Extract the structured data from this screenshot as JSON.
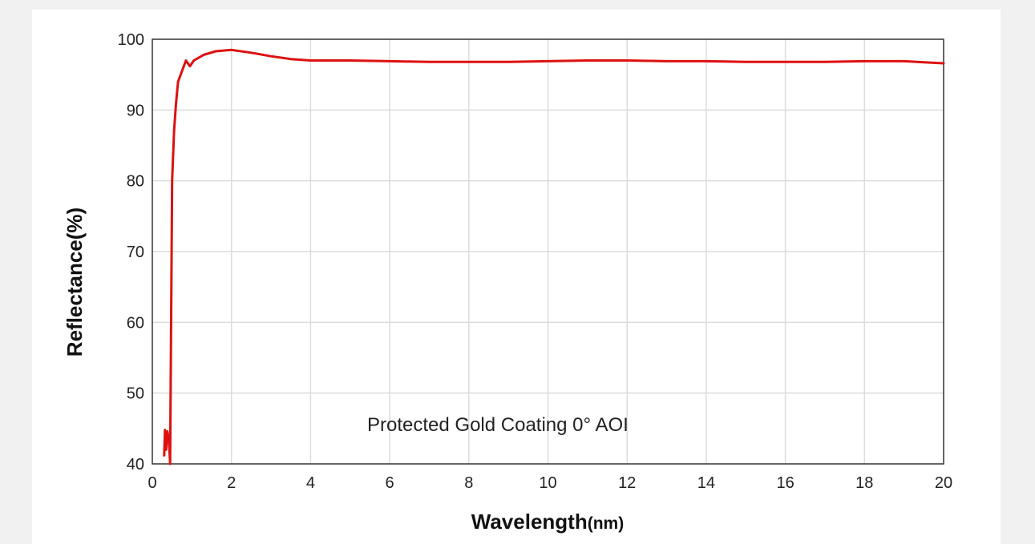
{
  "chart_data": {
    "type": "line",
    "xlabel": "Wavelength",
    "xlabel_unit": "(nm)",
    "ylabel": "Reflectance(%)",
    "annotation": "Protected Gold Coating  0°  AOI",
    "xlim": [
      0,
      20
    ],
    "ylim": [
      40,
      100
    ],
    "x_ticks": [
      0,
      2,
      4,
      6,
      8,
      10,
      12,
      14,
      16,
      18,
      20
    ],
    "y_ticks": [
      40,
      50,
      60,
      70,
      80,
      90,
      100
    ],
    "grid": true,
    "series": [
      {
        "color": "#dd1111",
        "points": [
          [
            0.3,
            41.2
          ],
          [
            0.32,
            44.8
          ],
          [
            0.35,
            42.0
          ],
          [
            0.38,
            44.6
          ],
          [
            0.42,
            43.5
          ],
          [
            0.45,
            40.0
          ],
          [
            0.5,
            80.0
          ],
          [
            0.55,
            87.0
          ],
          [
            0.6,
            91.0
          ],
          [
            0.65,
            94.0
          ],
          [
            0.75,
            95.5
          ],
          [
            0.85,
            97.0
          ],
          [
            0.95,
            96.2
          ],
          [
            1.05,
            97.0
          ],
          [
            1.3,
            97.8
          ],
          [
            1.6,
            98.3
          ],
          [
            2.0,
            98.5
          ],
          [
            2.5,
            98.1
          ],
          [
            3.0,
            97.6
          ],
          [
            3.5,
            97.2
          ],
          [
            4.0,
            97.0
          ],
          [
            5.0,
            97.0
          ],
          [
            6.0,
            96.9
          ],
          [
            7.0,
            96.8
          ],
          [
            8.0,
            96.8
          ],
          [
            9.0,
            96.8
          ],
          [
            10.0,
            96.9
          ],
          [
            11.0,
            97.0
          ],
          [
            12.0,
            97.0
          ],
          [
            13.0,
            96.9
          ],
          [
            14.0,
            96.9
          ],
          [
            15.0,
            96.8
          ],
          [
            16.0,
            96.8
          ],
          [
            17.0,
            96.8
          ],
          [
            18.0,
            96.9
          ],
          [
            19.0,
            96.9
          ],
          [
            20.0,
            96.6
          ]
        ]
      }
    ]
  }
}
